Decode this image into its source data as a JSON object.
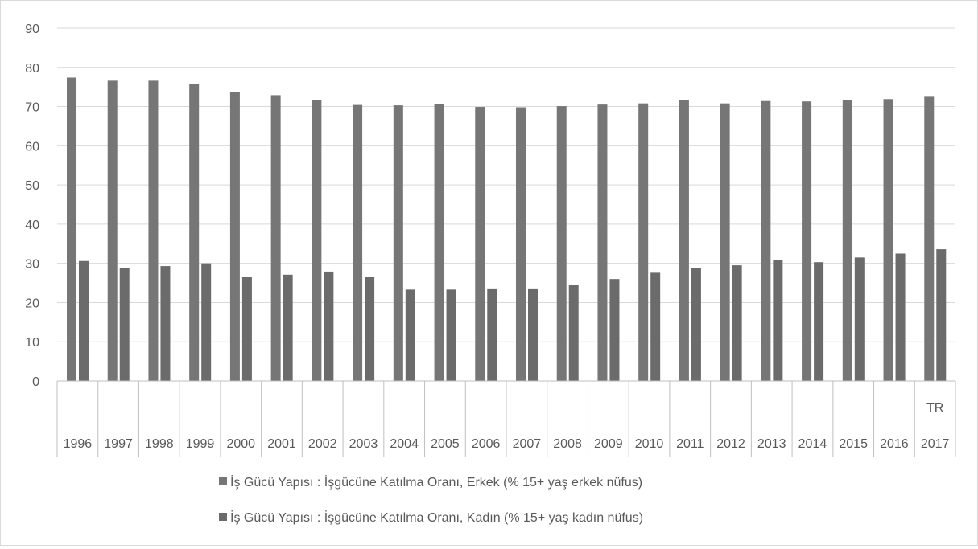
{
  "chart_data": {
    "type": "bar",
    "title": "",
    "xlabel": "",
    "ylabel": "",
    "group_label": "TR",
    "categories": [
      "1996",
      "1997",
      "1998",
      "1999",
      "2000",
      "2001",
      "2002",
      "2003",
      "2004",
      "2005",
      "2006",
      "2007",
      "2008",
      "2009",
      "2010",
      "2011",
      "2012",
      "2013",
      "2014",
      "2015",
      "2016",
      "2017"
    ],
    "ylim": [
      0,
      90
    ],
    "yticks": [
      0,
      10,
      20,
      30,
      40,
      50,
      60,
      70,
      80,
      90
    ],
    "grid": true,
    "legend_position": "bottom",
    "series": [
      {
        "name": "İş Gücü Yapısı : İşgücüne Katılma Oranı, Erkek (% 15+ yaş erkek nüfus)",
        "color": "#767676",
        "values": [
          77.4,
          76.6,
          76.6,
          75.8,
          73.7,
          72.9,
          71.6,
          70.4,
          70.3,
          70.6,
          69.9,
          69.8,
          70.1,
          70.5,
          70.8,
          71.7,
          70.8,
          71.4,
          71.3,
          71.6,
          71.9,
          72.5
        ]
      },
      {
        "name": "İş Gücü Yapısı : İşgücüne Katılma Oranı, Kadın (% 15+ yaş kadın nüfus)",
        "color": "#6b6b6b",
        "values": [
          30.6,
          28.8,
          29.3,
          30.0,
          26.6,
          27.1,
          27.9,
          26.6,
          23.3,
          23.3,
          23.6,
          23.6,
          24.5,
          26.0,
          27.6,
          28.8,
          29.5,
          30.8,
          30.3,
          31.5,
          32.5,
          33.6
        ]
      }
    ]
  }
}
